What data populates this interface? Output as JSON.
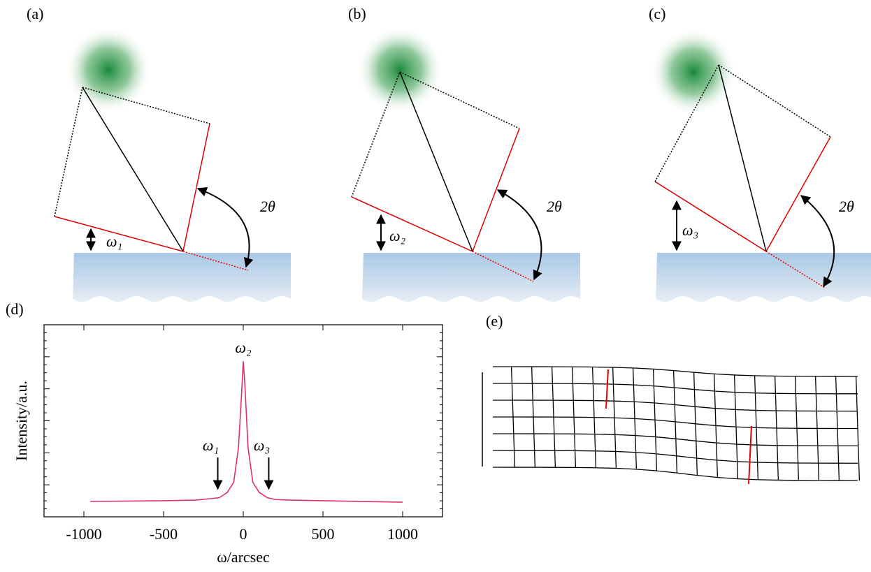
{
  "panels": [
    {
      "label": "(a)",
      "omega": "ω₁",
      "two_theta": "2θ"
    },
    {
      "label": "(b)",
      "omega": "ω₂",
      "two_theta": "2θ"
    },
    {
      "label": "(c)",
      "omega": "ω₃",
      "two_theta": "2θ"
    }
  ],
  "chart_data": {
    "type": "line",
    "label": "(d)",
    "x_label": "ω/arcsec",
    "y_label": "Intensity/a.u.",
    "x": [
      -960,
      -500,
      -300,
      -200,
      -150,
      -100,
      -60,
      -30,
      -10,
      0,
      10,
      30,
      60,
      100,
      150,
      200,
      300,
      500,
      1000
    ],
    "series": [
      {
        "color": "#e0306a",
        "values": [
          0.08,
          0.084,
          0.087,
          0.095,
          0.1,
          0.127,
          0.18,
          0.36,
          0.65,
          0.81,
          0.69,
          0.36,
          0.18,
          0.127,
          0.1,
          0.09,
          0.087,
          0.084,
          0.076
        ]
      }
    ],
    "xlim": [
      -1250,
      1250
    ],
    "xticks": [
      -1000,
      -500,
      0,
      500,
      1000
    ],
    "ylim": [
      0,
      1
    ],
    "annotations": [
      {
        "text": "ω₂",
        "x": 0
      },
      {
        "text": "ω₁",
        "x": -160
      },
      {
        "text": "ω₃",
        "x": 160
      }
    ]
  },
  "panel_e": {
    "label": "(e)"
  }
}
